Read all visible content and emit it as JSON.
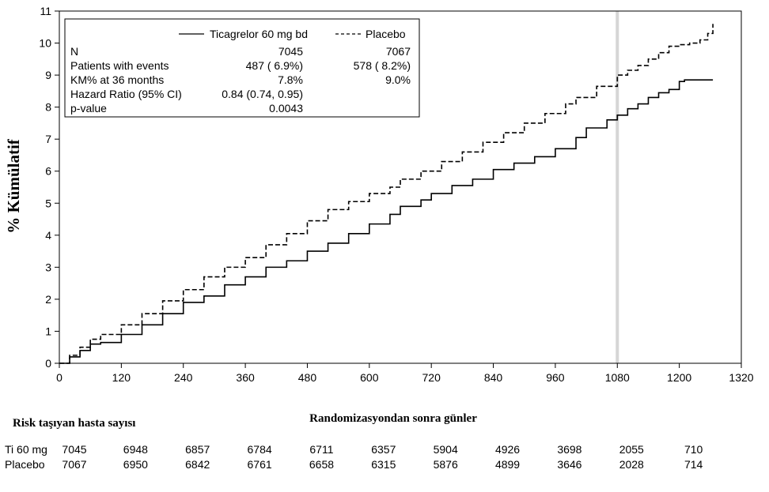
{
  "chart_data": {
    "type": "line",
    "xlabel": "Randomizasyondan sonra günler",
    "ylabel": "% Kümülatif",
    "xlim": [
      0,
      1320
    ],
    "ylim": [
      0,
      11
    ],
    "x_ticks": [
      0,
      120,
      240,
      360,
      480,
      600,
      720,
      840,
      960,
      1080,
      1200,
      1320
    ],
    "y_ticks": [
      0,
      1,
      2,
      3,
      4,
      5,
      6,
      7,
      8,
      9,
      10,
      11
    ],
    "reference_line_x": 1080,
    "series": [
      {
        "name": "Ticagrelor 60 mg bd",
        "style": "solid",
        "color": "#000000",
        "x": [
          0,
          20,
          40,
          60,
          80,
          120,
          160,
          200,
          240,
          280,
          320,
          360,
          400,
          440,
          480,
          520,
          560,
          600,
          640,
          660,
          700,
          720,
          760,
          800,
          840,
          880,
          920,
          960,
          1000,
          1020,
          1060,
          1080,
          1100,
          1120,
          1140,
          1160,
          1180,
          1200,
          1210,
          1265
        ],
        "y": [
          0,
          0.2,
          0.4,
          0.6,
          0.65,
          0.9,
          1.2,
          1.55,
          1.9,
          2.1,
          2.45,
          2.7,
          3.0,
          3.2,
          3.5,
          3.75,
          4.05,
          4.35,
          4.65,
          4.9,
          5.1,
          5.3,
          5.55,
          5.75,
          6.05,
          6.25,
          6.45,
          6.7,
          7.05,
          7.35,
          7.6,
          7.75,
          7.95,
          8.1,
          8.3,
          8.45,
          8.55,
          8.8,
          8.85,
          8.85
        ]
      },
      {
        "name": "Placebo",
        "style": "dashed",
        "color": "#000000",
        "x": [
          0,
          20,
          40,
          60,
          80,
          120,
          160,
          200,
          240,
          280,
          320,
          360,
          400,
          440,
          480,
          520,
          560,
          600,
          640,
          660,
          700,
          740,
          780,
          820,
          860,
          900,
          940,
          980,
          1000,
          1040,
          1080,
          1100,
          1120,
          1140,
          1160,
          1180,
          1200,
          1220,
          1240,
          1255,
          1265
        ],
        "y": [
          0,
          0.25,
          0.5,
          0.75,
          0.9,
          1.2,
          1.55,
          1.95,
          2.3,
          2.7,
          3.0,
          3.3,
          3.7,
          4.05,
          4.45,
          4.8,
          5.05,
          5.3,
          5.5,
          5.75,
          6.0,
          6.3,
          6.6,
          6.9,
          7.2,
          7.5,
          7.8,
          8.1,
          8.3,
          8.65,
          9.0,
          9.15,
          9.3,
          9.5,
          9.7,
          9.9,
          9.95,
          10.0,
          10.1,
          10.3,
          10.6
        ]
      }
    ],
    "stats_table": {
      "rows": [
        {
          "label": "N",
          "ticagrelor": "7045",
          "placebo": "7067"
        },
        {
          "label": "Patients with events",
          "ticagrelor": "487 ( 6.9%)",
          "placebo": "578 ( 8.2%)"
        },
        {
          "label": "KM% at 36 months",
          "ticagrelor": "7.8%",
          "placebo": "9.0%"
        },
        {
          "label": "Hazard Ratio (95% CI)",
          "ticagrelor": "0.84 (0.74, 0.95)",
          "placebo": ""
        },
        {
          "label": "p-value",
          "ticagrelor": "0.0043",
          "placebo": ""
        }
      ]
    },
    "risk_table": {
      "title": "Risk taşıyan hasta sayısı",
      "rows": [
        {
          "label": "Ti 60 mg",
          "values": [
            "7045",
            "6948",
            "6857",
            "6784",
            "6711",
            "6357",
            "5904",
            "4926",
            "3698",
            "2055",
            "710"
          ]
        },
        {
          "label": "Placebo",
          "values": [
            "7067",
            "6950",
            "6842",
            "6761",
            "6658",
            "6315",
            "5876",
            "4899",
            "3646",
            "2028",
            "714"
          ]
        }
      ]
    }
  }
}
